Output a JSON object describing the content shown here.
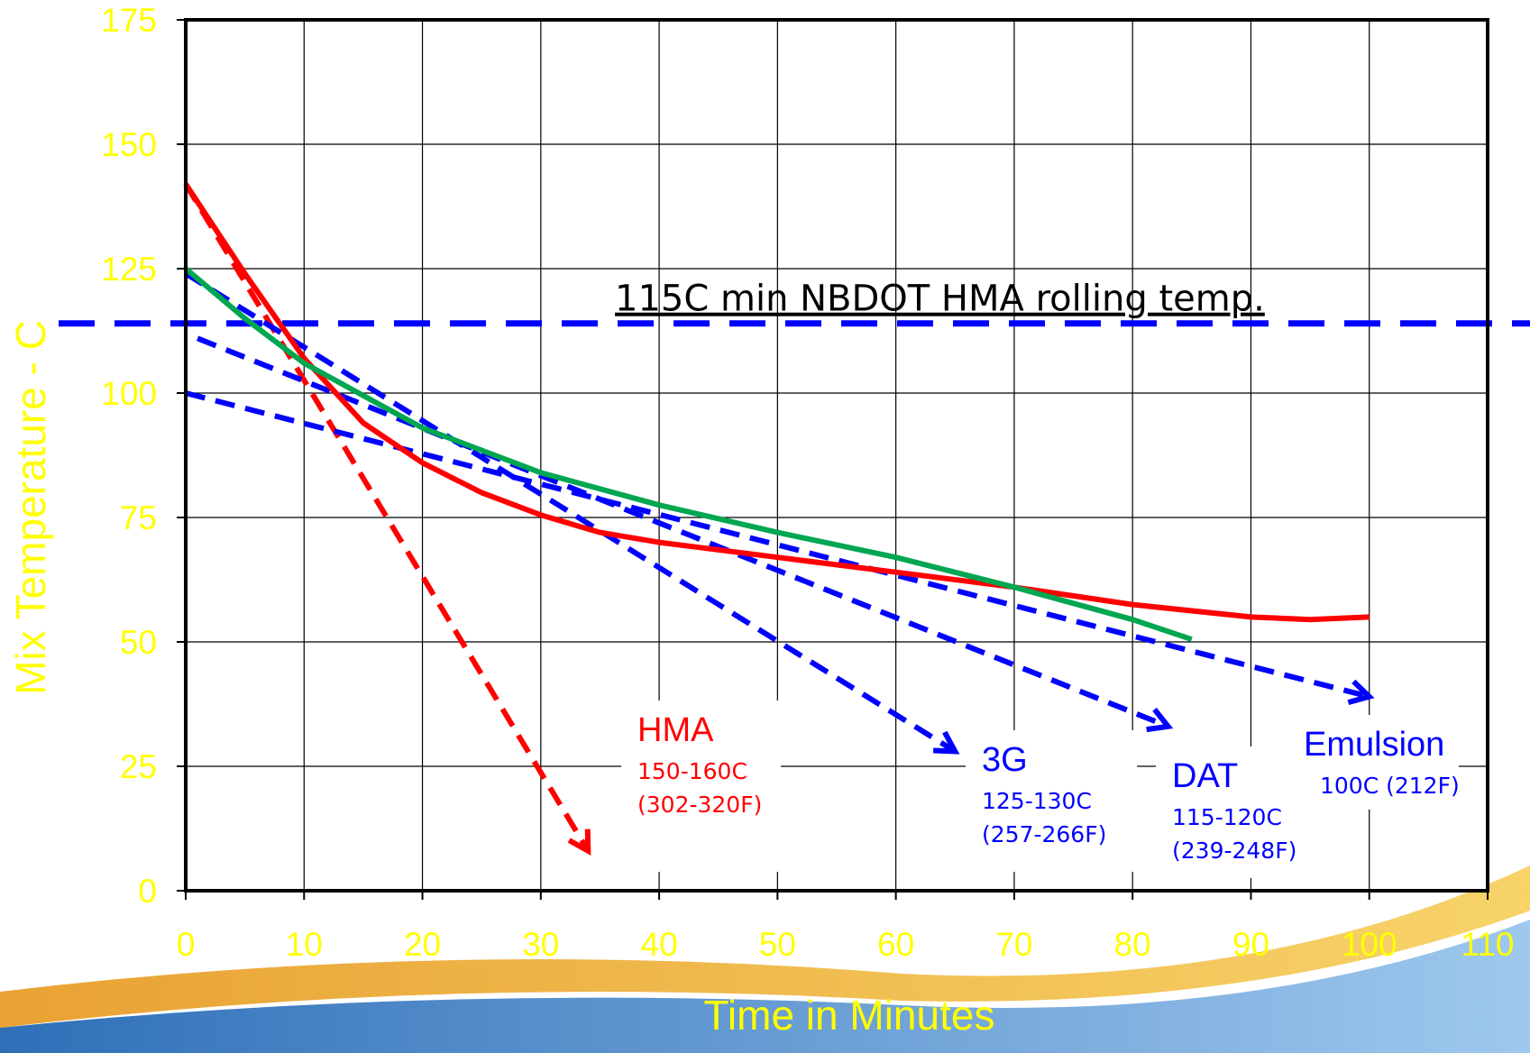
{
  "chart_data": {
    "type": "line",
    "x_label": "Time in Minutes",
    "y_label": "Mix Temperature - C",
    "xlim": [
      0,
      110
    ],
    "ylim": [
      0,
      175
    ],
    "xticks": [
      0,
      10,
      20,
      30,
      40,
      50,
      60,
      70,
      80,
      90,
      100,
      110
    ],
    "yticks": [
      0,
      25,
      50,
      75,
      100,
      125,
      150,
      175
    ],
    "grid": true,
    "series": [
      {
        "color": "#ff0000",
        "x": [
          0,
          5,
          10,
          15,
          20,
          25,
          30,
          35,
          40,
          50,
          60,
          70,
          80,
          90,
          95,
          100
        ],
        "values": [
          142,
          124,
          107,
          94,
          86,
          80,
          75.5,
          72,
          70,
          67,
          64,
          61,
          57.5,
          55,
          54.5,
          55
        ]
      },
      {
        "color": "#00a651",
        "x": [
          0,
          5,
          10,
          20,
          30,
          40,
          50,
          60,
          70,
          80,
          85
        ],
        "values": [
          125,
          115,
          106,
          93,
          84,
          77.5,
          72,
          67,
          61,
          54.5,
          50.5
        ]
      }
    ],
    "tangents": [
      {
        "name": "HMA",
        "color": "#ff0000",
        "x": [
          0,
          34
        ],
        "values": [
          142,
          8
        ],
        "details": [
          "150-160C",
          "(302-320F)"
        ]
      },
      {
        "name": "3G",
        "color": "#0000ff",
        "x": [
          0,
          65
        ],
        "values": [
          124,
          28
        ],
        "details": [
          "125-130C",
          "(257-266F)"
        ]
      },
      {
        "name": "DAT",
        "color": "#0000ff",
        "x": [
          1,
          83
        ],
        "values": [
          111,
          33
        ],
        "details": [
          "115-120C",
          "(239-248F)"
        ]
      },
      {
        "name": "Emulsion",
        "color": "#0000ff",
        "x": [
          0,
          100
        ],
        "values": [
          100,
          39
        ],
        "details": [
          "100C (212F)"
        ]
      }
    ],
    "reference": {
      "value": 114,
      "label": "115C min NBDOT HMA rolling temp.",
      "color": "#0000ff"
    }
  }
}
